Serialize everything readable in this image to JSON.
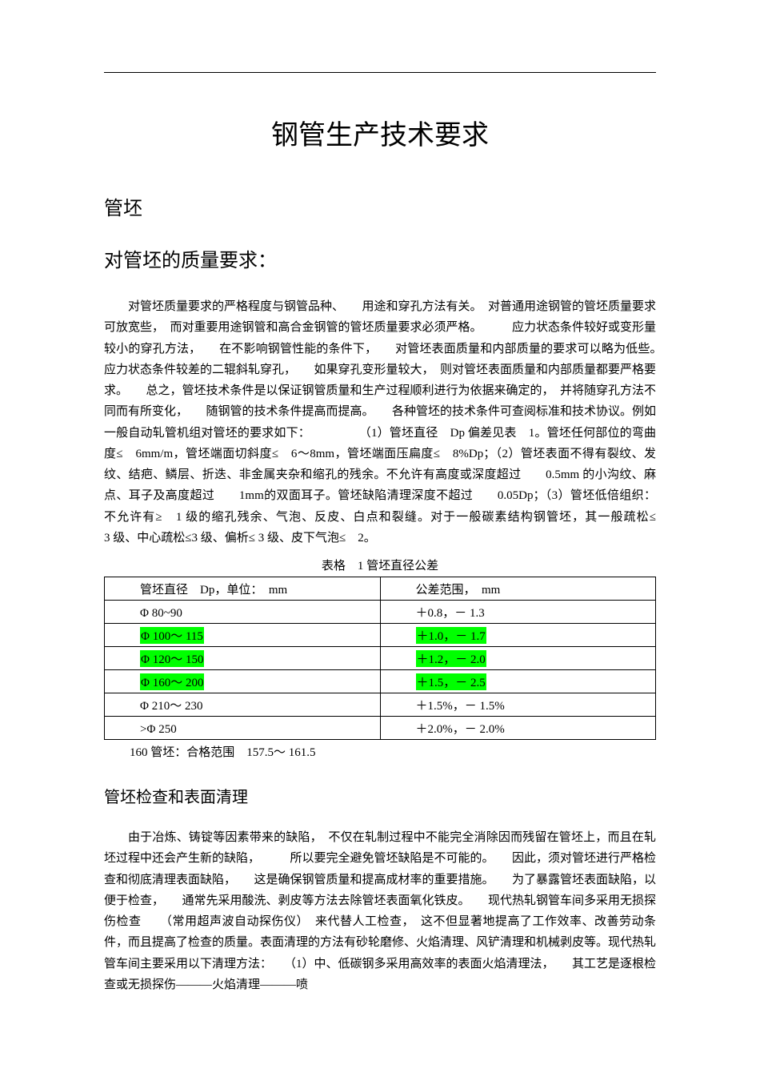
{
  "title": "钢管生产技术要求",
  "section1": {
    "heading": "管坯",
    "sub1": {
      "heading": "对管坯的质量要求：",
      "paragraph": "对管坯质量要求的严格程度与钢管品种、　　用途和穿孔方法有关。　对普通用途钢管的管坯质量要求可放宽些，　而对重要用途钢管和高合金钢管的管坯质量要求必须严格。　　　应力状态条件较好或变形量较小的穿孔方法，　　在不影响钢管性能的条件下，　　对管坯表面质量和内部质量的要求可以略为低些。　应力状态条件较差的二辊斜轧穿孔，　　如果穿孔变形量较大，　则对管坯表面质量和内部质量都要严格要求。　　总之，管坯技术条件是以保证钢管质量和生产过程顺利进行为依据来确定的，　并将随穿孔方法不同而有所变化，　　随钢管的技术条件提高而提高。　　各种管坯的技术条件可查阅标准和技术协议。例如一般自动轧管机组对管坯的要求如下：　　　　　（1）管坯直径　Dp 偏差见表　1。管坯任何部位的弯曲度≤　6mm/m，管坯端面切斜度≤　6～8mm，管坯端面压扁度≤　8%Dp；（2）管坯表面不得有裂纹、发纹、结疤、鳞层、折迭、非金属夹杂和缩孔的残余。不允许有高度或深度超过　　0.5mm 的小沟纹、麻点、耳子及高度超过　　1mm的双面耳子。管坯缺陷清理深度不超过　　0.05Dp；（3）管坯低倍组织：不允许有≥　1 级的缩孔残余、气泡、反皮、白点和裂缝。对于一般碳素结构钢管坯，其一般疏松≤　　　3 级、中心疏松≤3 级、偏析≤ 3 级、皮下气泡≤　2。"
    },
    "table": {
      "caption": "表格　1 管坯直径公差",
      "header_left": "管坯直径　Dp，单位：　mm",
      "header_right": "公差范围，　mm",
      "rows": [
        {
          "left": "Φ 80~90",
          "right": "＋0.8，－ 1.3",
          "hl": false
        },
        {
          "left": "Φ 100～ 115",
          "right": "＋1.0，－ 1.7",
          "hl": true
        },
        {
          "left": "Φ 120～ 150",
          "right": "＋1.2，－ 2.0",
          "hl": true
        },
        {
          "left": "Φ 160～ 200",
          "right": "＋1.5，－ 2.5",
          "hl": true
        },
        {
          "left": "Φ 210～ 230",
          "right": "＋1.5%，－ 1.5%",
          "hl": false
        },
        {
          "left": ">Φ 250",
          "right": "＋2.0%，－ 2.0%",
          "hl": false
        }
      ],
      "note": "160 管坯：合格范围　157.5～ 161.5",
      "highlight_color": "#00ff00"
    },
    "sub2": {
      "heading": "管坯检查和表面清理",
      "paragraph": "由于冶炼、铸锭等因素带来的缺陷，　不仅在轧制过程中不能完全消除因而残留在管坯上，而且在轧坯过程中还会产生新的缺陷，　　　所以要完全避免管坯缺陷是不可能的。　　因此，须对管坯进行严格检查和彻底清理表面缺陷，　　这是确保钢管质量和提高成材率的重要措施。　　为了暴露管坯表面缺陷，以便于检查，　　通常先采用酸洗、剥皮等方法去除管坯表面氧化铁皮。　　现代热轧钢管车间多采用无损探伤检查　　（常用超声波自动探伤仪）　来代替人工检查，　这不但显著地提高了工作效率、改善劳动条件，而且提高了检查的质量。表面清理的方法有砂轮磨修、火焰清理、风铲清理和机械剥皮等。现代热轧管车间主要采用以下清理方法：　　（1）中、低碳钢多采用高效率的表面火焰清理法，　　其工艺是逐根检查或无损探伤———火焰清理———喷"
    }
  }
}
